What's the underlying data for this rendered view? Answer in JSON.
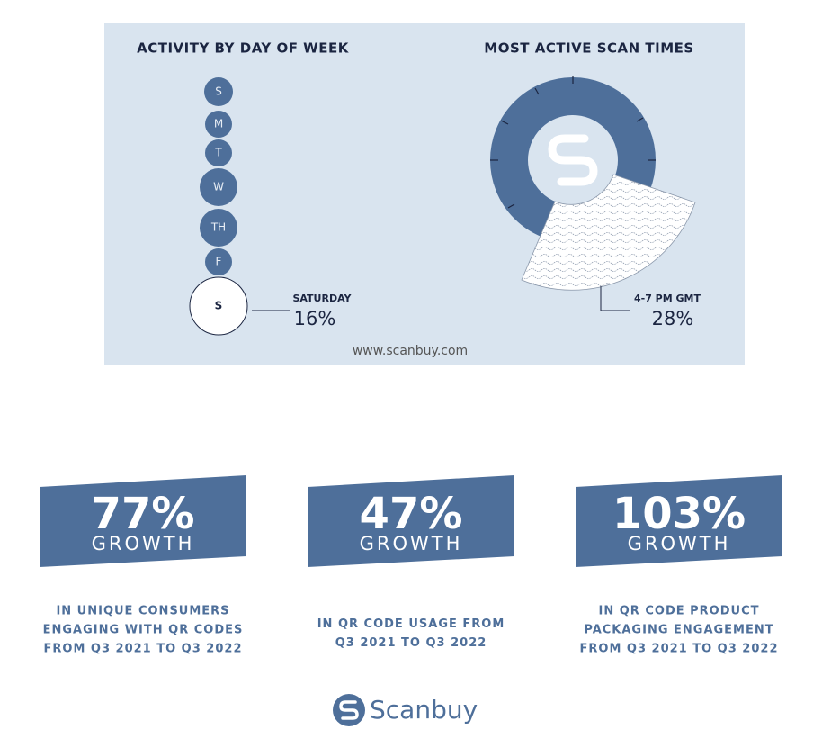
{
  "activity_panel": {
    "title": "ACTIVITY BY DAY OF WEEK",
    "days": [
      "S",
      "M",
      "T",
      "W",
      "TH",
      "F"
    ],
    "highlight": {
      "day": "S",
      "label": "SATURDAY",
      "value": "16%"
    }
  },
  "scan_times_panel": {
    "title": "MOST ACTIVE SCAN TIMES",
    "highlight": {
      "label": "4-7 PM GMT",
      "value": "28%"
    }
  },
  "website": "www.scanbuy.com",
  "stats": [
    {
      "value": "77%",
      "label": "GROWTH",
      "description": [
        "IN UNIQUE CONSUMERS",
        "ENGAGING WITH QR CODES",
        "FROM Q3 2021 TO Q3 2022"
      ]
    },
    {
      "value": "47%",
      "label": "GROWTH",
      "description": [
        "IN QR CODE USAGE FROM",
        "Q3 2021 TO Q3 2022"
      ]
    },
    {
      "value": "103%",
      "label": "GROWTH",
      "description": [
        "IN QR CODE PRODUCT",
        "PACKAGING ENGAGEMENT",
        "FROM Q3 2021 TO Q3 2022"
      ]
    }
  ],
  "footer": {
    "brand": "Scanbuy"
  }
}
